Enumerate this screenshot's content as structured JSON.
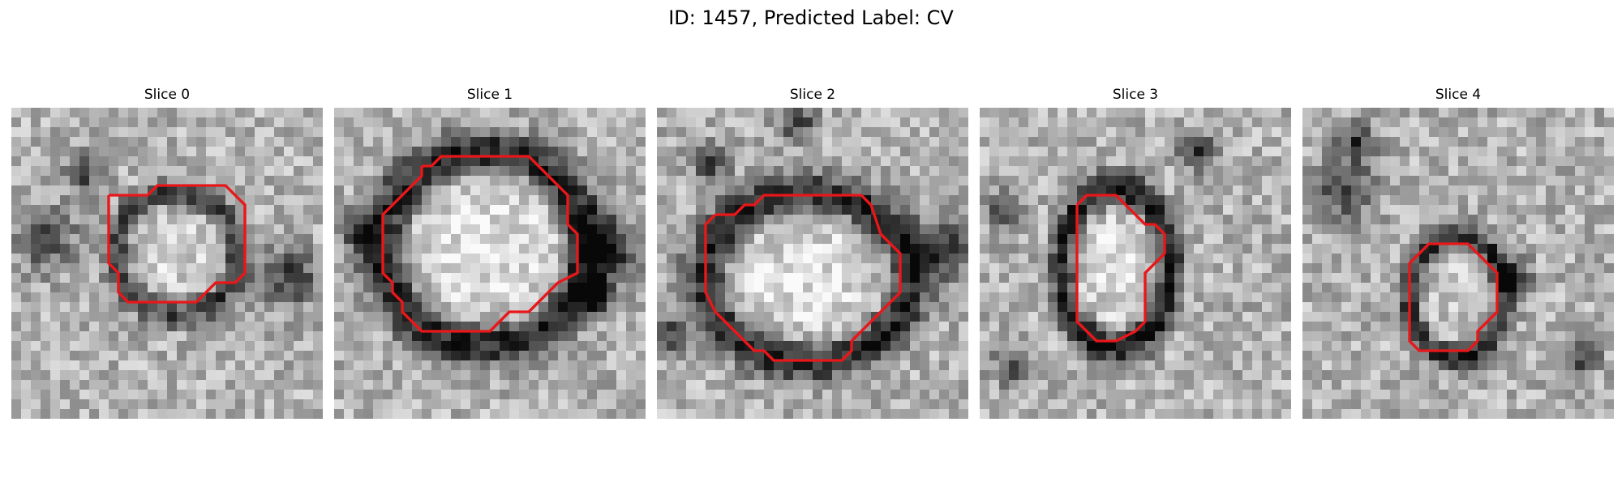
{
  "figure": {
    "title": "ID: 1457, Predicted Label: CV"
  },
  "panels": [
    {
      "title": "Slice 0"
    },
    {
      "title": "Slice 1"
    },
    {
      "title": "Slice 2"
    },
    {
      "title": "Slice 3"
    },
    {
      "title": "Slice 4"
    }
  ],
  "colors": {
    "contour": "#e8171a",
    "background": "#ffffff"
  }
}
